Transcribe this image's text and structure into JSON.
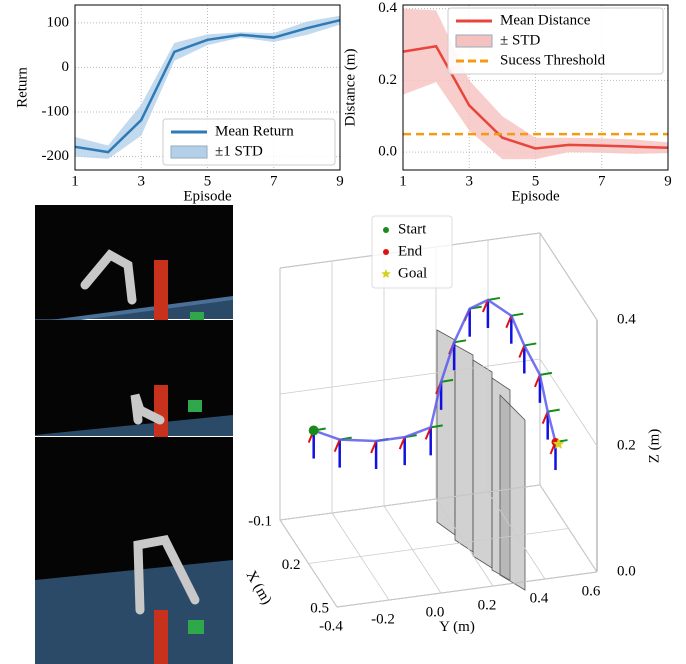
{
  "chart_data": [
    {
      "type": "line",
      "x_label": "Episode",
      "y_label": "Return",
      "x": [
        1,
        2,
        3,
        4,
        5,
        6,
        7,
        8,
        9
      ],
      "xlim": [
        1,
        9
      ],
      "xticks": [
        1,
        3,
        5,
        7,
        9
      ],
      "ylim": [
        -230,
        140
      ],
      "yticks": [
        -200,
        -100,
        0,
        100
      ],
      "grid": true,
      "legend": "lower right",
      "series": [
        {
          "name": "Mean Return",
          "color": "#2e7ab6",
          "values": [
            -178,
            -190,
            -118,
            35,
            62,
            73,
            67,
            88,
            106
          ],
          "std": [
            22,
            15,
            35,
            20,
            12,
            6,
            10,
            15,
            10
          ],
          "std_name": "±1 STD",
          "std_color": "#b3d0ea"
        }
      ]
    },
    {
      "type": "line",
      "x_label": "Episode",
      "y_label": "Distance (m)",
      "x": [
        1,
        2,
        3,
        4,
        5,
        6,
        7,
        8,
        9
      ],
      "xlim": [
        1,
        9
      ],
      "xticks": [
        1,
        3,
        5,
        7,
        9
      ],
      "ylim": [
        -0.05,
        0.41
      ],
      "yticks": [
        {
          "value": 0,
          "label": "0.0"
        },
        {
          "value": 0.2,
          "label": "0.2"
        },
        {
          "value": 0.4,
          "label": "0.4"
        }
      ],
      "grid": true,
      "legend": "upper right",
      "series": [
        {
          "name": "Mean Distance",
          "color": "#e8453c",
          "values": [
            0.28,
            0.295,
            0.13,
            0.04,
            0.01,
            0.02,
            0.018,
            0.015,
            0.012
          ],
          "std": [
            0.12,
            0.1,
            0.07,
            0.06,
            0.03,
            0.02,
            0.02,
            0.02,
            0.015
          ],
          "std_name": "± STD",
          "std_color": "#f6c2c0"
        }
      ],
      "threshold": {
        "name": "Sucess Threshold",
        "value": 0.05,
        "color": "#f39c12"
      }
    },
    {
      "type": "trajectory3d",
      "x_label": "X (m)",
      "y_label": "Y (m)",
      "z_label": "Z (m)",
      "xlim": [
        -0.1,
        0.5
      ],
      "ylim": [
        -0.4,
        0.6
      ],
      "zlim": [
        0,
        0.4
      ],
      "xticks": [
        -0.1,
        0.2,
        0.5
      ],
      "yticks": [
        -0.4,
        -0.2,
        {
          "value": 0,
          "label": "0.0"
        },
        0.2,
        0.4,
        0.6
      ],
      "zticks": [
        {
          "value": 0,
          "label": "0.0"
        },
        {
          "value": 0.2,
          "label": "0.2"
        },
        {
          "value": 0.4,
          "label": "0.4"
        }
      ],
      "trajectory": {
        "color": "#5b5bf0",
        "x": [
          0.2,
          0.2,
          0.2,
          0.2,
          0.2,
          0.2,
          0.2,
          0.2,
          0.2,
          0.2,
          0.2,
          0.2,
          0.2,
          0.2
        ],
        "y": [
          -0.38,
          -0.28,
          -0.14,
          -0.03,
          0.07,
          0.11,
          0.16,
          0.22,
          0.29,
          0.38,
          0.43,
          0.49,
          0.52,
          0.55
        ],
        "z": [
          0.21,
          0.19,
          0.18,
          0.18,
          0.19,
          0.26,
          0.32,
          0.37,
          0.38,
          0.35,
          0.3,
          0.25,
          0.19,
          0.14
        ]
      },
      "legend": [
        {
          "name": "Start",
          "color": "#1a8a1a"
        },
        {
          "name": "End",
          "color": "#e01010"
        },
        {
          "name": "Goal",
          "color": "#d8d020"
        }
      ]
    }
  ]
}
